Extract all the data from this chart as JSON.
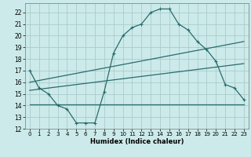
{
  "title": "",
  "xlabel": "Humidex (Indice chaleur)",
  "bg_color": "#cceaea",
  "grid_color": "#aacccc",
  "line_color": "#2a6b6b",
  "xlim": [
    -0.5,
    23.5
  ],
  "ylim": [
    12,
    22.8
  ],
  "xticks": [
    0,
    1,
    2,
    3,
    4,
    5,
    6,
    7,
    8,
    9,
    10,
    11,
    12,
    13,
    14,
    15,
    16,
    17,
    18,
    19,
    20,
    21,
    22,
    23
  ],
  "yticks": [
    12,
    13,
    14,
    15,
    16,
    17,
    18,
    19,
    20,
    21,
    22
  ],
  "line1_x": [
    0,
    1,
    2,
    3,
    4,
    5,
    6,
    7,
    8,
    9,
    10,
    11,
    12,
    13,
    14,
    15,
    16,
    17,
    18,
    19,
    20,
    21,
    22,
    23
  ],
  "line1_y": [
    17,
    15.5,
    15,
    14,
    13.7,
    12.5,
    12.5,
    12.5,
    15.2,
    18.5,
    20,
    20.7,
    21,
    22,
    22.3,
    22.3,
    21,
    20.5,
    19.5,
    18.8,
    17.8,
    15.8,
    15.5,
    14.5
  ],
  "line2_x": [
    0,
    23
  ],
  "line2_y": [
    16.0,
    19.5
  ],
  "line3_x": [
    0,
    10,
    19,
    23
  ],
  "line3_y": [
    14.1,
    14.1,
    14.1,
    14.1
  ],
  "line4_x": [
    0,
    23
  ],
  "line4_y": [
    15.3,
    17.6
  ]
}
